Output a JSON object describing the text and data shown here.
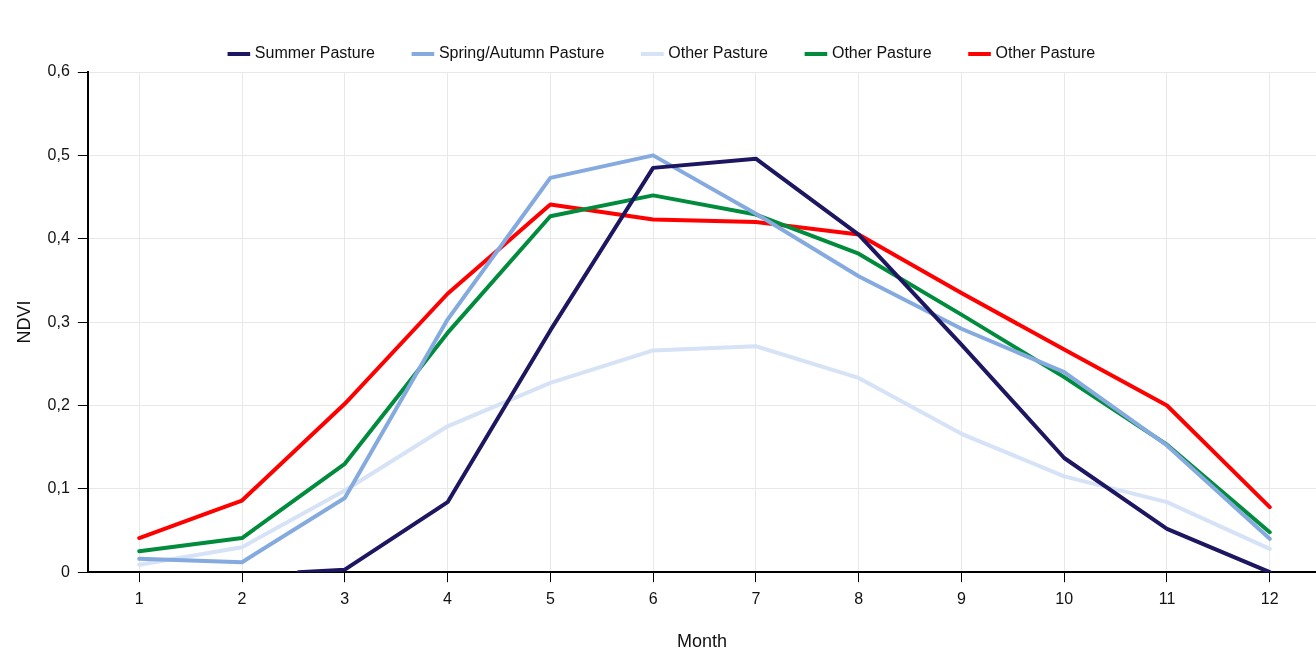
{
  "chart_data": {
    "type": "line",
    "xlabel": "Month",
    "ylabel": "NDVI",
    "xlim": [
      0.5,
      12.45
    ],
    "xticks": [
      1,
      2,
      3,
      4,
      5,
      6,
      7,
      8,
      9,
      10,
      11,
      12
    ],
    "ylim": [
      0,
      0.6
    ],
    "yticks": [
      0,
      {
        "value": 0.1,
        "label": "0,1"
      },
      {
        "value": 0.2,
        "label": "0,2"
      },
      {
        "value": 0.3,
        "label": "0,3"
      },
      {
        "value": 0.4,
        "label": "0,4"
      },
      {
        "value": 0.5,
        "label": "0,5"
      },
      {
        "value": 0.6,
        "label": "0,6"
      }
    ],
    "grid": true,
    "legend": "top",
    "marker": "none",
    "line_style": "solid",
    "series": [
      {
        "name": "Summer Pasture",
        "color": "#1c1760",
        "x": [
          2.55,
          3,
          4,
          5,
          6,
          7,
          8,
          9,
          10,
          11,
          12
        ],
        "values": [
          0,
          0.003,
          0.084,
          0.29,
          0.485,
          0.496,
          0.405,
          0.273,
          0.137,
          0.052,
          0
        ]
      },
      {
        "name": "Spring/Autumn Pasture",
        "color": "#84aadf",
        "x": [
          1,
          2,
          3,
          4,
          5,
          6,
          7,
          8,
          9,
          10,
          11,
          12
        ],
        "values": [
          0.016,
          0.012,
          0.089,
          0.303,
          0.473,
          0.5,
          0.43,
          0.355,
          0.292,
          0.24,
          0.152,
          0.04
        ]
      },
      {
        "name": "Other Pasture",
        "color": "#d6e2f5",
        "x": [
          1,
          2,
          3,
          4,
          5,
          6,
          7,
          8,
          9,
          10,
          11,
          12
        ],
        "values": [
          0.009,
          0.03,
          0.098,
          0.175,
          0.227,
          0.266,
          0.271,
          0.233,
          0.166,
          0.115,
          0.084,
          0.028
        ]
      },
      {
        "name": "Other Pasture",
        "color": "#008c3c",
        "x": [
          1,
          2,
          3,
          4,
          5,
          6,
          7,
          8,
          9,
          10,
          11,
          12
        ],
        "values": [
          0.025,
          0.041,
          0.13,
          0.287,
          0.427,
          0.452,
          0.429,
          0.382,
          0.309,
          0.234,
          0.153,
          0.048
        ]
      },
      {
        "name": "Other Pasture",
        "color": "#ff0000",
        "x": [
          1,
          2,
          3,
          4,
          5,
          6,
          7,
          8,
          9,
          10,
          11,
          12
        ],
        "values": [
          0.041,
          0.086,
          0.202,
          0.334,
          0.441,
          0.423,
          0.42,
          0.405,
          0.335,
          0.267,
          0.2,
          0.078
        ]
      }
    ]
  }
}
